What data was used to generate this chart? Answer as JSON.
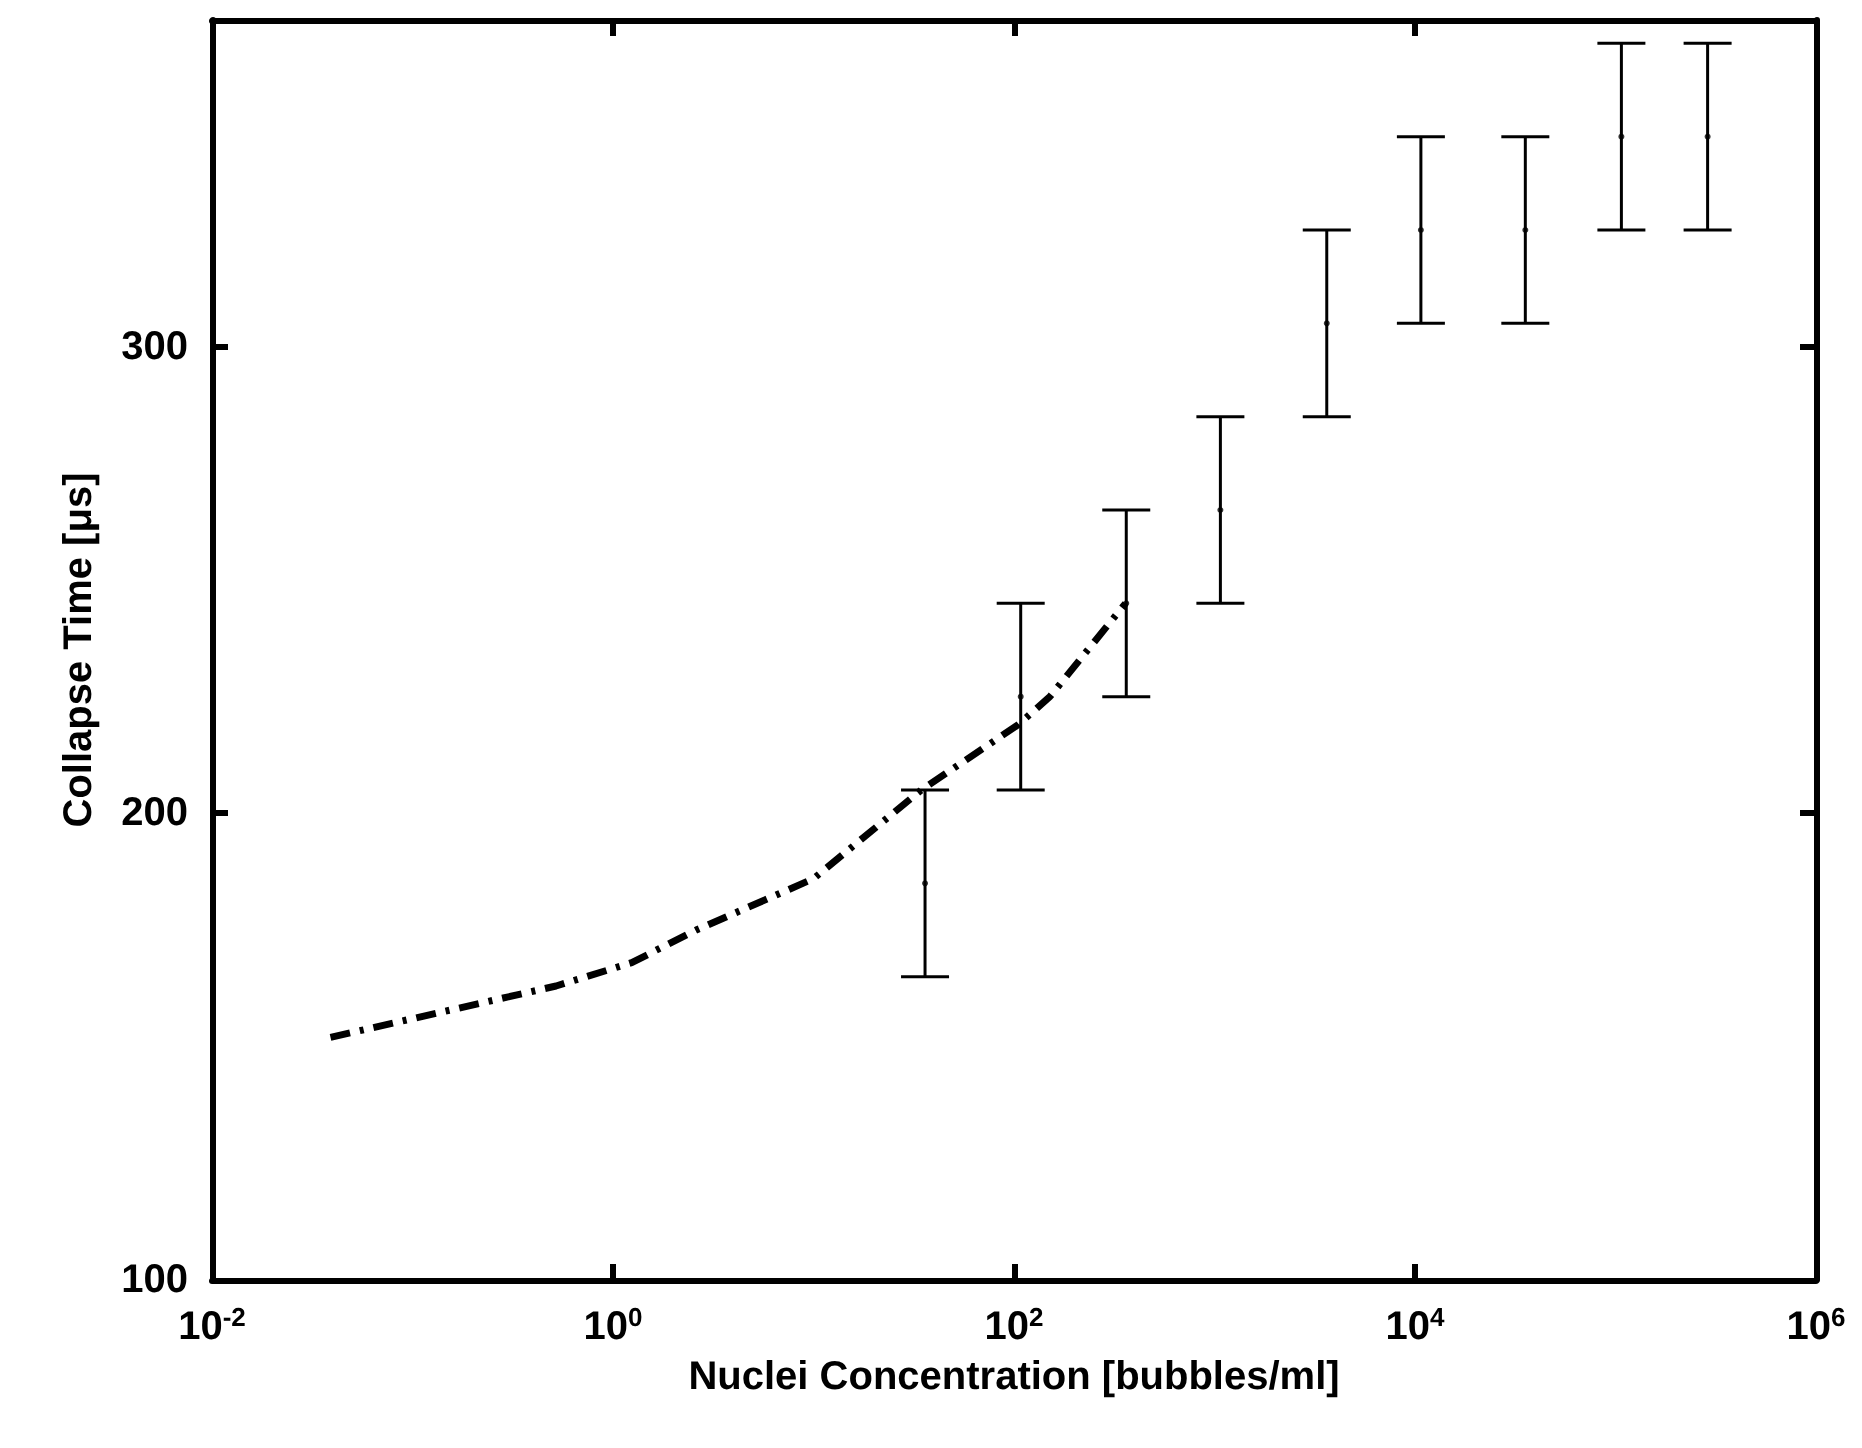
{
  "chart_data": {
    "type": "scatter",
    "xlabel": "Nuclei Concentration [bubbles/ml]",
    "ylabel": "Collapse Time [μs]",
    "log": "x",
    "xlim": [
      0.01,
      1000000
    ],
    "ylim": [
      100,
      370
    ],
    "grid": false,
    "xticks": [
      {
        "value": 0.01,
        "label": "10$^{-2}$"
      },
      {
        "value": 1,
        "label": "10$^{0}$"
      },
      {
        "value": 100,
        "label": "10$^{2}$"
      },
      {
        "value": 10000,
        "label": "10$^{4}$"
      },
      {
        "value": 1000000,
        "label": "10$^{6}$"
      }
    ],
    "yticks": [
      100,
      200,
      300
    ],
    "series": [
      {
        "color": "#000000",
        "marker": "circle",
        "x": [
          36,
          108,
          363,
          1070,
          3630,
          10700,
          35500,
          107000,
          288000
        ],
        "values": [
          185,
          225,
          245,
          265,
          305,
          325,
          325,
          345,
          345
        ],
        "errors": [
          20,
          20,
          20,
          20,
          20,
          20,
          20,
          20,
          20
        ]
      },
      {
        "type": "line",
        "color": "#000000",
        "marker": "none",
        "line_style": "dashdot",
        "x": [
          0.039,
          0.52,
          1.24,
          2.6,
          10,
          34.5,
          105,
          151,
          360
        ],
        "values": [
          152,
          163,
          168,
          175,
          186,
          205,
          219,
          225,
          245
        ]
      }
    ]
  }
}
